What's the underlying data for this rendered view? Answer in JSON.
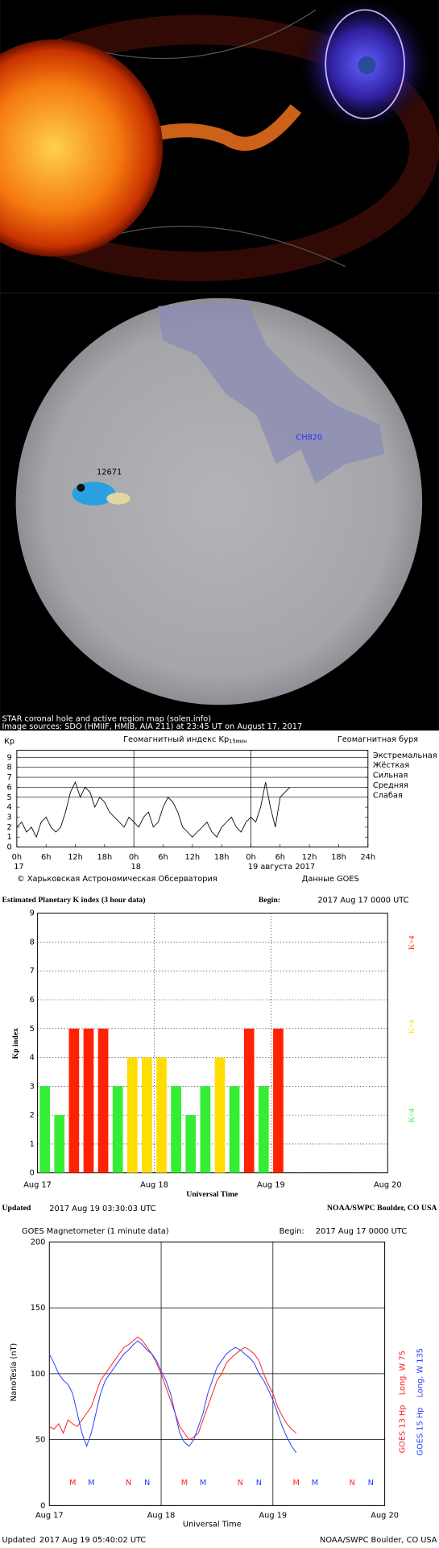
{
  "solar_map": {
    "active_region": "12671",
    "coronal_hole": "CH820",
    "caption": [
      "STAR coronal hole and active region map (solen.info)",
      "Image sources: SDO (HMIIF, HMIB, AIA 211) at 23:45 UT on August 17, 2017"
    ]
  },
  "chart_data": [
    {
      "type": "line",
      "title": "Геомагнитный индекс Kp",
      "title_sub": "15мин",
      "y_label": "Кр",
      "right_title": "Геомагнитная буря",
      "source": "© Харьковская Астрономическая Обсерватория",
      "source_data": "Данные GOES",
      "color": "#000000",
      "x": [
        0,
        1,
        2,
        3,
        4,
        5,
        6,
        7,
        8,
        9,
        10,
        11,
        12,
        13,
        14,
        15,
        16,
        17,
        18,
        19,
        20,
        21,
        22,
        23,
        24,
        25,
        26,
        27,
        28,
        29,
        30,
        31,
        32,
        33,
        34,
        35,
        36,
        37,
        38,
        39,
        40,
        41,
        42,
        43,
        44,
        45,
        46,
        47,
        48,
        49,
        50,
        51,
        52,
        53,
        54,
        55,
        56
      ],
      "values": [
        2,
        2.5,
        1.5,
        2,
        1,
        2.5,
        3,
        2,
        1.5,
        2,
        3.5,
        5.5,
        6.5,
        5,
        6,
        5.5,
        4,
        5,
        4.5,
        3.5,
        3,
        2.5,
        2,
        3,
        2.5,
        2,
        3,
        3.5,
        2,
        2.5,
        4,
        5,
        4.5,
        3.5,
        2,
        1.5,
        1,
        1.5,
        2,
        2.5,
        1.5,
        1,
        2,
        2.5,
        3,
        2,
        1.5,
        2.5,
        3,
        2.5,
        4,
        6.5,
        4,
        2,
        5,
        5.5,
        6
      ],
      "xlim": [
        0,
        72
      ],
      "xticks": [
        {
          "value": 0,
          "label": "0h"
        },
        {
          "value": 6,
          "label": "6h"
        },
        {
          "value": 12,
          "label": "12h"
        },
        {
          "value": 18,
          "label": "18h"
        },
        {
          "value": 24,
          "label": "0h"
        },
        {
          "value": 30,
          "label": "6h"
        },
        {
          "value": 36,
          "label": "12h"
        },
        {
          "value": 42,
          "label": "18h"
        },
        {
          "value": 48,
          "label": "0h"
        },
        {
          "value": 54,
          "label": "6h"
        },
        {
          "value": 60,
          "label": "12h"
        },
        {
          "value": 66,
          "label": "18h"
        },
        {
          "value": 72,
          "label": "24h"
        }
      ],
      "x_dates": [
        {
          "value": 0,
          "label": "17"
        },
        {
          "value": 24,
          "label": "18"
        },
        {
          "value": 48,
          "label": "19 августа 2017"
        }
      ],
      "ylim": [
        0,
        9.7
      ],
      "yticks": [
        0,
        1,
        2,
        3,
        4,
        5,
        6,
        7,
        8,
        9
      ],
      "levels": [
        {
          "value": 9,
          "label": "Экстремальная"
        },
        {
          "value": 8,
          "label": "Жёсткая"
        },
        {
          "value": 7,
          "label": "Сильная"
        },
        {
          "value": 6,
          "label": "Средняя"
        },
        {
          "value": 5,
          "label": "Слабая"
        }
      ]
    },
    {
      "type": "bar",
      "title": "Estimated Planetary K index (3 hour data)",
      "begin_label": "Begin:",
      "begin": "2017 Aug 17 0000 UTC",
      "y_label": "Kp index",
      "x_label": "Universal Time",
      "x": [
        0,
        3,
        6,
        9,
        12,
        15,
        18,
        21,
        24,
        27,
        30,
        33,
        36,
        39,
        42,
        45,
        48
      ],
      "values": [
        3,
        2,
        5,
        5,
        5,
        3,
        4,
        4,
        4,
        3,
        2,
        3,
        4,
        3,
        5,
        3,
        5
      ],
      "threshold": 4,
      "color_scale": [
        {
          "label": "K<4",
          "color": "#33ee33"
        },
        {
          "label": "K=4",
          "color": "#ffdd00"
        },
        {
          "label": "K>4",
          "color": "#ff2200"
        }
      ],
      "xlim": [
        0,
        72
      ],
      "xticks": [
        {
          "value": 0,
          "label": "Aug 17"
        },
        {
          "value": 24,
          "label": "Aug 18"
        },
        {
          "value": 48,
          "label": "Aug 19"
        },
        {
          "value": 72,
          "label": "Aug 20"
        }
      ],
      "ylim": [
        0,
        9
      ],
      "yticks": [
        0,
        1,
        2,
        3,
        4,
        5,
        6,
        7,
        8,
        9
      ],
      "grid": true,
      "updated_label": "Updated",
      "updated": "2017 Aug 19 03:30:03 UTC",
      "credit": "NOAA/SWPC Boulder, CO USA"
    },
    {
      "type": "line",
      "title": "GOES Magnetometer (1 minute data)",
      "begin_label": "Begin:",
      "begin": "2017 Aug 17 0000 UTC",
      "y_label": "NanoTesla (nT)",
      "x_label": "Universal Time",
      "x": [
        0,
        1,
        2,
        3,
        4,
        5,
        6,
        7,
        8,
        9,
        10,
        11,
        12,
        13,
        14,
        15,
        16,
        17,
        18,
        19,
        20,
        21,
        22,
        23,
        24,
        25,
        26,
        27,
        28,
        29,
        30,
        31,
        32,
        33,
        34,
        35,
        36,
        37,
        38,
        39,
        40,
        41,
        42,
        43,
        44,
        45,
        46,
        47,
        48,
        49,
        50,
        51,
        52,
        53
      ],
      "series": [
        {
          "name": "GOES 13 Hp",
          "longitude": "Long. W 75",
          "color": "#ff2020",
          "midnight": [
            5,
            29,
            53
          ],
          "noon": [
            17,
            41,
            65
          ],
          "values": [
            60,
            58,
            62,
            55,
            65,
            62,
            60,
            65,
            70,
            75,
            85,
            95,
            100,
            105,
            110,
            115,
            120,
            122,
            125,
            128,
            125,
            120,
            115,
            108,
            100,
            90,
            80,
            70,
            60,
            55,
            50,
            52,
            55,
            65,
            75,
            85,
            95,
            100,
            108,
            112,
            115,
            118,
            120,
            118,
            115,
            110,
            100,
            92,
            85,
            75,
            68,
            62,
            58,
            55
          ]
        },
        {
          "name": "GOES 15 Hp",
          "longitude": "Long. W 135",
          "color": "#2040ff",
          "midnight": [
            9,
            33,
            57
          ],
          "noon": [
            21,
            45,
            69
          ],
          "values": [
            115,
            108,
            100,
            95,
            92,
            85,
            70,
            55,
            45,
            55,
            70,
            85,
            95,
            100,
            105,
            110,
            115,
            118,
            122,
            125,
            122,
            118,
            115,
            110,
            102,
            95,
            85,
            70,
            55,
            48,
            45,
            50,
            60,
            70,
            85,
            95,
            105,
            110,
            115,
            118,
            120,
            118,
            115,
            112,
            108,
            100,
            95,
            88,
            80,
            70,
            60,
            52,
            45,
            40
          ]
        }
      ],
      "marker_labels": {
        "midnight": "M",
        "noon": "N"
      },
      "xlim": [
        0,
        72
      ],
      "xticks": [
        {
          "value": 0,
          "label": "Aug 17"
        },
        {
          "value": 24,
          "label": "Aug 18"
        },
        {
          "value": 48,
          "label": "Aug 19"
        },
        {
          "value": 72,
          "label": "Aug 20"
        }
      ],
      "ylim": [
        0,
        200
      ],
      "yticks": [
        0,
        50,
        100,
        150,
        200
      ],
      "grid": true,
      "updated_label": "Updated",
      "updated": "2017 Aug 19 05:40:02 UTC",
      "credit": "NOAA/SWPC Boulder, CO USA"
    }
  ]
}
